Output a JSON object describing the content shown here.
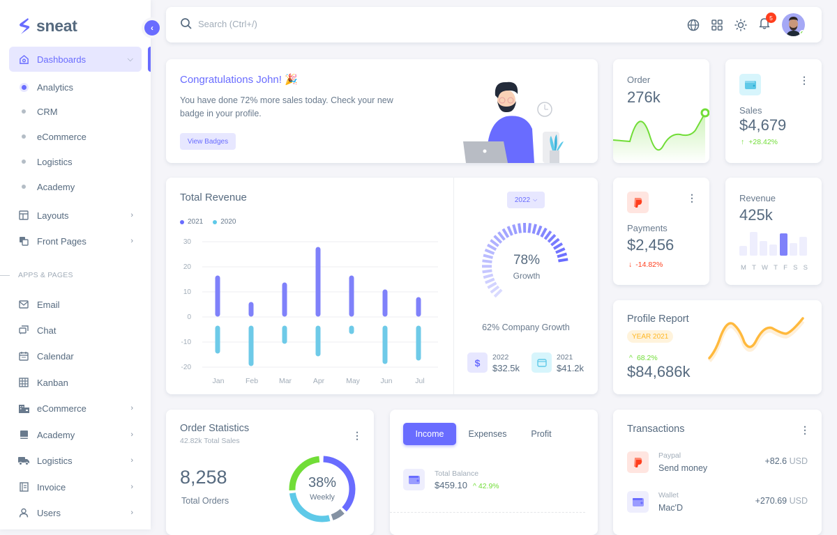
{
  "sidebar": {
    "brand": "sneat",
    "dashboards_label": "Dashboards",
    "sub_items": [
      "Analytics",
      "CRM",
      "eCommerce",
      "Logistics",
      "Academy"
    ],
    "layouts_label": "Layouts",
    "front_pages_label": "Front Pages",
    "section_header": "APPS & PAGES",
    "apps": [
      "Email",
      "Chat",
      "Calendar",
      "Kanban",
      "eCommerce",
      "Academy",
      "Logistics",
      "Invoice",
      "Users"
    ]
  },
  "navbar": {
    "search_placeholder": "Search (Ctrl+/)",
    "notification_count": "5"
  },
  "welcome": {
    "title": "Congratulations John! 🎉",
    "text_line1": "You have done 72% more sales today. Check your new",
    "text_line2": "badge in your profile.",
    "button": "View Badges"
  },
  "order_card": {
    "label": "Order",
    "value": "276k"
  },
  "sales_card": {
    "label": "Sales",
    "value": "$4,679",
    "change": "+28.42%"
  },
  "payments_card": {
    "label": "Payments",
    "value": "$2,456",
    "change": "-14.82%"
  },
  "revenue_card": {
    "label": "Revenue",
    "value": "425k",
    "days": [
      "M",
      "T",
      "W",
      "T",
      "F",
      "S",
      "S"
    ]
  },
  "profile_report": {
    "title": "Profile Report",
    "badge": "YEAR 2021",
    "change": "68.2%",
    "value": "$84,686k"
  },
  "total_revenue": {
    "title": "Total Revenue",
    "legend": [
      "2021",
      "2020"
    ],
    "year_select": "2022",
    "growth_percent": "78%",
    "growth_label": "Growth",
    "company_growth": "62% Company Growth",
    "stats": [
      {
        "year": "2022",
        "value": "$32.5k"
      },
      {
        "year": "2021",
        "value": "$41.2k"
      }
    ]
  },
  "order_statistics": {
    "title": "Order Statistics",
    "subtitle": "42.82k Total Sales",
    "total_orders": "8,258",
    "total_orders_label": "Total Orders",
    "donut_percent": "38%",
    "donut_label": "Weekly"
  },
  "income_tabs": {
    "tabs": [
      "Income",
      "Expenses",
      "Profit"
    ],
    "balance_label": "Total Balance",
    "balance_value": "$459.10",
    "balance_change": "42.9%"
  },
  "transactions": {
    "title": "Transactions",
    "items": [
      {
        "source": "Paypal",
        "desc": "Send money",
        "amount": "+82.6",
        "currency": "USD"
      },
      {
        "source": "Wallet",
        "desc": "Mac'D",
        "amount": "+270.69",
        "currency": "USD"
      }
    ]
  },
  "colors": {
    "primary": "#696cff",
    "info": "#5ec9e8",
    "success": "#71dd37",
    "danger": "#ff3e1d",
    "warning": "#ffab00"
  },
  "chart_data": [
    {
      "type": "bar",
      "title": "Total Revenue",
      "categories": [
        "Jan",
        "Feb",
        "Mar",
        "Apr",
        "May",
        "Jun",
        "Jul"
      ],
      "series": [
        {
          "name": "2021",
          "values": [
            18,
            7,
            15,
            29,
            18,
            12,
            9
          ]
        },
        {
          "name": "2020",
          "values": [
            -13,
            -18,
            -9,
            -14,
            -5,
            -17,
            -15
          ]
        }
      ],
      "yticks": [
        30,
        20,
        10,
        0,
        -10,
        -20
      ],
      "ylim": [
        -20,
        30
      ],
      "grid": true,
      "legend_position": "top-left"
    },
    {
      "type": "bar",
      "title": "Revenue weekly",
      "categories": [
        "M",
        "T",
        "W",
        "T",
        "F",
        "S",
        "S"
      ],
      "values": [
        40,
        95,
        65,
        50,
        90,
        55,
        80
      ],
      "highlight": "F"
    },
    {
      "type": "pie",
      "title": "Order Statistics (Weekly)",
      "center_label": "38%",
      "slices": [
        {
          "name": "purple",
          "value": 38
        },
        {
          "name": "gray",
          "value": 7
        },
        {
          "name": "cyan",
          "value": 28
        },
        {
          "name": "green",
          "value": 27
        }
      ]
    },
    {
      "type": "gauge",
      "title": "Growth",
      "value": 78
    }
  ]
}
